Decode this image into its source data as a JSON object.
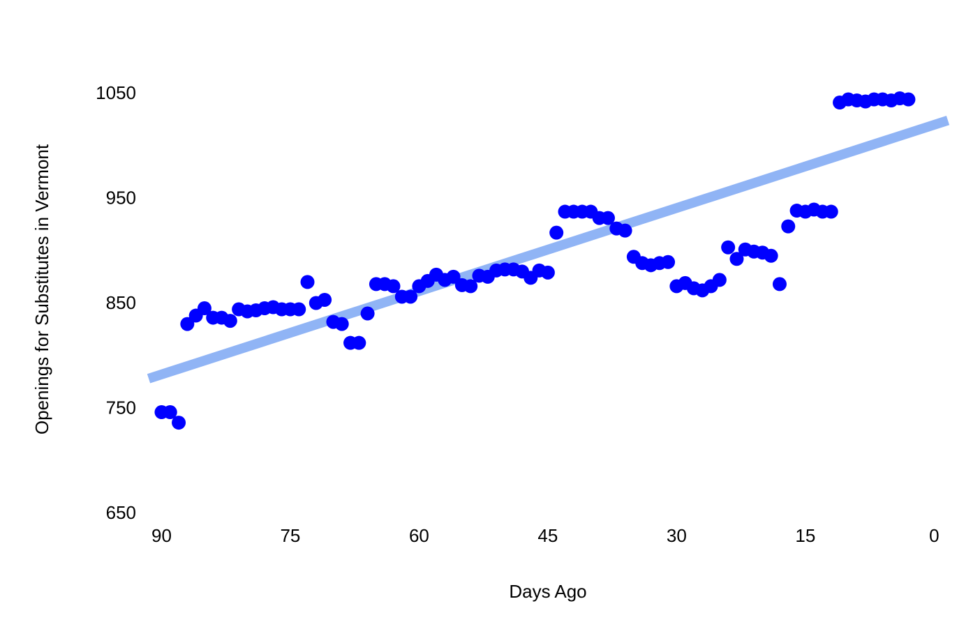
{
  "chart_data": {
    "type": "scatter",
    "x_label": "Days Ago",
    "y_label": "Openings for Substitutes in Vermont",
    "xlim": [
      91.5,
      -1.6
    ],
    "xticks": [
      90,
      75,
      60,
      45,
      30,
      15,
      0
    ],
    "ylim": [
      650,
      1050
    ],
    "yticks": [
      650,
      750,
      850,
      950,
      1050
    ],
    "grid": false,
    "series": [
      {
        "color": "#0000ff",
        "x": [
          90,
          89,
          88,
          87,
          86,
          85,
          84,
          83,
          82,
          81,
          80,
          79,
          78,
          77,
          76,
          75,
          74,
          73,
          72,
          71,
          70,
          69,
          68,
          67,
          66,
          65,
          64,
          63,
          62,
          61,
          60,
          59,
          58,
          57,
          56,
          55,
          54,
          53,
          52,
          51,
          50,
          49,
          48,
          47,
          46,
          45,
          44,
          43,
          42,
          41,
          40,
          39,
          38,
          37,
          36,
          35,
          34,
          33,
          32,
          31,
          30,
          29,
          28,
          27,
          26,
          25,
          24,
          23,
          22,
          21,
          20,
          19,
          18,
          17,
          16,
          15,
          14,
          13,
          12,
          11,
          10,
          9,
          8,
          7,
          6,
          5,
          4,
          3
        ],
        "values": [
          747,
          747,
          737,
          831,
          839,
          846,
          837,
          837,
          834,
          845,
          843,
          844,
          846,
          847,
          845,
          845,
          845,
          871,
          851,
          854,
          833,
          831,
          813,
          813,
          841,
          869,
          869,
          867,
          857,
          857,
          867,
          872,
          878,
          873,
          876,
          868,
          867,
          877,
          876,
          882,
          883,
          883,
          881,
          875,
          882,
          880,
          918,
          938,
          938,
          938,
          938,
          932,
          932,
          922,
          920,
          895,
          889,
          887,
          889,
          890,
          867,
          870,
          865,
          863,
          867,
          873,
          904,
          893,
          902,
          900,
          899,
          896,
          869,
          924,
          939,
          938,
          940,
          938,
          938,
          1042,
          1045,
          1044,
          1043,
          1045,
          1045,
          1044,
          1046,
          1045
        ]
      }
    ],
    "trend": {
      "color": "#90b4f5",
      "x": [
        91.5,
        -1.6
      ],
      "values": [
        779,
        1025
      ]
    }
  }
}
